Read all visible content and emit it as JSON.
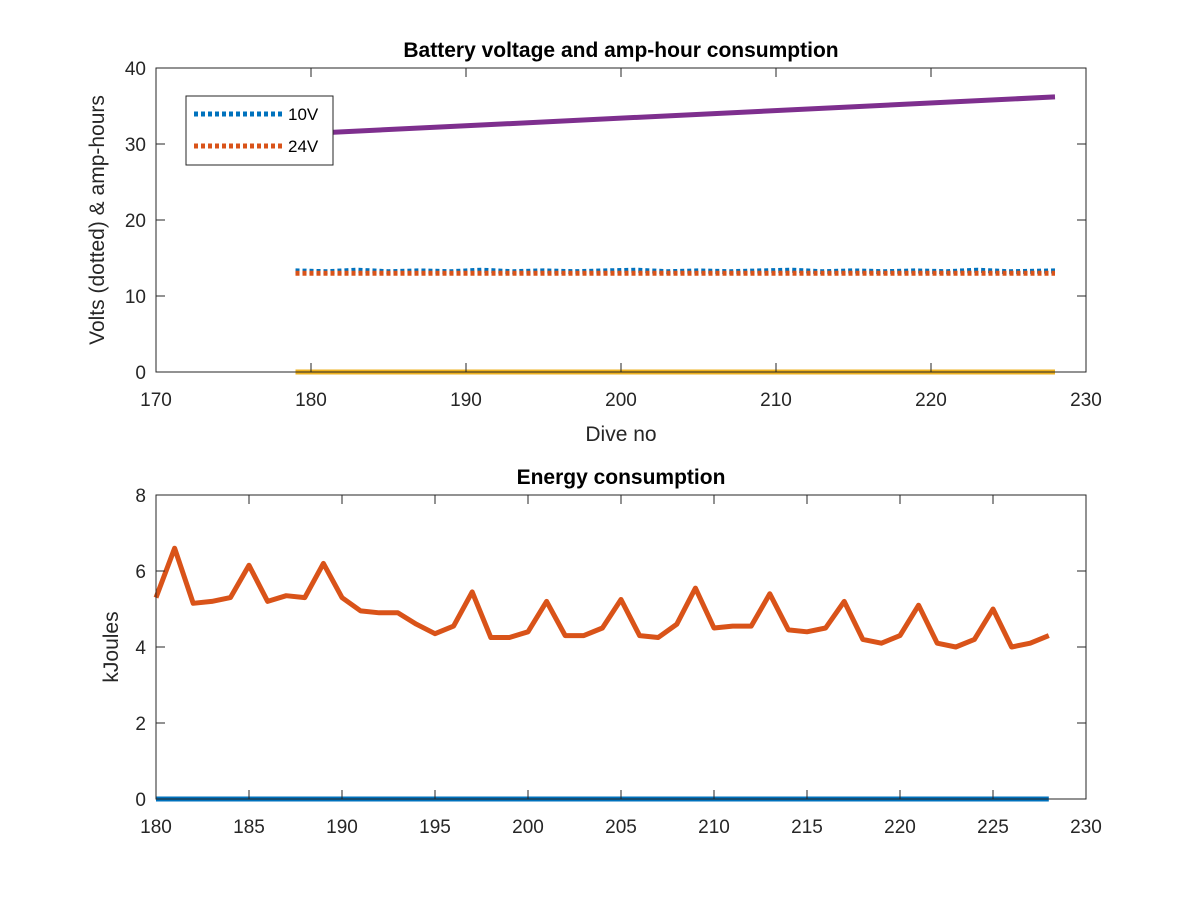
{
  "chart_data": [
    {
      "type": "line",
      "title": "Battery voltage and amp-hour consumption",
      "xlabel": "Dive no",
      "ylabel": "Volts (dotted) & amp-hours",
      "xlim": [
        170,
        230
      ],
      "ylim": [
        0,
        40
      ],
      "xticks": [
        170,
        180,
        190,
        200,
        210,
        220,
        230
      ],
      "yticks": [
        0,
        10,
        20,
        30,
        40
      ],
      "legend": {
        "placement": "top-left",
        "entries": [
          "10V",
          "24V"
        ]
      },
      "series": [
        {
          "name": "10V",
          "style": "dotted",
          "color": "#0072BD",
          "x": [
            179,
            181,
            183,
            185,
            187,
            189,
            191,
            193,
            195,
            197,
            199,
            201,
            203,
            205,
            207,
            209,
            211,
            213,
            215,
            217,
            219,
            221,
            223,
            225,
            228
          ],
          "y": [
            13.3,
            13.2,
            13.4,
            13.2,
            13.3,
            13.2,
            13.4,
            13.2,
            13.3,
            13.2,
            13.3,
            13.4,
            13.2,
            13.3,
            13.2,
            13.3,
            13.4,
            13.2,
            13.3,
            13.2,
            13.3,
            13.2,
            13.4,
            13.2,
            13.3
          ]
        },
        {
          "name": "24V",
          "style": "dotted",
          "color": "#D95319",
          "x": [
            179,
            228
          ],
          "y": [
            13.0,
            13.0
          ]
        },
        {
          "style": "solid",
          "color": "#7E2F8E",
          "x": [
            179,
            228
          ],
          "y": [
            31.3,
            36.2
          ]
        },
        {
          "style": "solid",
          "color": "#EDB120",
          "x": [
            179,
            228
          ],
          "y": [
            0,
            0
          ]
        }
      ]
    },
    {
      "type": "line",
      "title": "Energy consumption",
      "xlabel": "",
      "ylabel": "kJoules",
      "xlim": [
        180,
        230
      ],
      "ylim": [
        0,
        8
      ],
      "xticks": [
        180,
        185,
        190,
        195,
        200,
        205,
        210,
        215,
        220,
        225,
        230
      ],
      "yticks": [
        0,
        2,
        4,
        6,
        8
      ],
      "series": [
        {
          "style": "solid",
          "color": "#D95319",
          "x": [
            180,
            181,
            182,
            183,
            184,
            185,
            186,
            187,
            188,
            189,
            190,
            191,
            192,
            193,
            194,
            195,
            196,
            197,
            198,
            199,
            200,
            201,
            202,
            203,
            204,
            205,
            206,
            207,
            208,
            209,
            210,
            211,
            212,
            213,
            214,
            215,
            216,
            217,
            218,
            219,
            220,
            221,
            222,
            223,
            224,
            225,
            226,
            227,
            228
          ],
          "y": [
            5.3,
            6.6,
            5.15,
            5.2,
            5.3,
            6.15,
            5.2,
            5.35,
            5.3,
            6.2,
            5.3,
            4.95,
            4.9,
            4.9,
            4.6,
            4.35,
            4.55,
            5.45,
            4.25,
            4.25,
            4.4,
            5.2,
            4.3,
            4.3,
            4.5,
            5.25,
            4.3,
            4.25,
            4.6,
            5.55,
            4.5,
            4.55,
            4.55,
            5.4,
            4.45,
            4.4,
            4.5,
            5.2,
            4.2,
            4.1,
            4.3,
            5.1,
            4.1,
            4.0,
            4.2,
            5.0,
            4.0,
            4.1,
            4.3
          ]
        },
        {
          "style": "solid",
          "color": "#0072BD",
          "x": [
            180,
            228
          ],
          "y": [
            0,
            0
          ]
        }
      ]
    }
  ]
}
